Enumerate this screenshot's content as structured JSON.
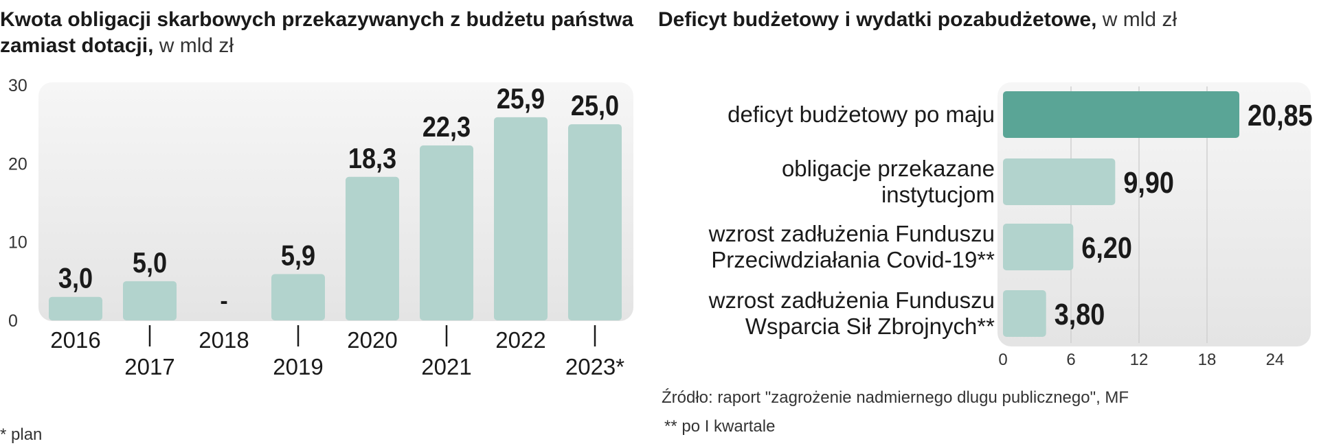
{
  "left_chart": {
    "title_bold": "Kwota obligacji skarbowych przekazywanych z budżetu państwa zamiast dotacji,",
    "title_unit": "w mld zł",
    "footnote": "* plan"
  },
  "right_chart": {
    "title_bold": "Deficyt budżetowy i wydatki pozabudżetowe,",
    "title_unit": "w mld zł",
    "source": "Źródło: raport \"zagrożenie nadmiernego dlugu publicznego\", MF",
    "note": "** po I kwartale"
  },
  "colors": {
    "bar": "#b2d3cd",
    "bar_highlight": "#5aa596",
    "panel": "#ececec"
  },
  "chart_data": [
    {
      "type": "bar",
      "orientation": "vertical",
      "title": "Kwota obligacji skarbowych przekazywanych z budżetu państwa zamiast dotacji, w mld zł",
      "categories": [
        "2016",
        "2017",
        "2018",
        "2019",
        "2020",
        "2021",
        "2022",
        "2023*"
      ],
      "values": [
        3.0,
        5.0,
        null,
        5.9,
        18.3,
        22.3,
        25.9,
        25.0
      ],
      "value_labels": [
        "3,0",
        "5,0",
        "-",
        "5,9",
        "18,3",
        "22,3",
        "25,9",
        "25,0"
      ],
      "yticks": [
        "0",
        "10",
        "20",
        "30"
      ],
      "ylim": [
        0,
        30
      ],
      "grid": false
    },
    {
      "type": "bar",
      "orientation": "horizontal",
      "title": "Deficyt budżetowy i wydatki pozabudżetowe, w mld zł",
      "categories": [
        [
          "deficyt budżetowy po maju"
        ],
        [
          "obligacje przekazane",
          "instytucjom"
        ],
        [
          "wzrost zadłużenia Funduszu",
          "Przeciwdziałania Covid-19**"
        ],
        [
          "wzrost zadłużenia Funduszu",
          "Wsparcia Sił Zbrojnych**"
        ]
      ],
      "values": [
        20.85,
        9.9,
        6.2,
        3.8
      ],
      "value_labels": [
        "20,85",
        "9,90",
        "6,20",
        "3,80"
      ],
      "xticks": [
        "0",
        "6",
        "12",
        "18",
        "24"
      ],
      "xlim": [
        0,
        24
      ],
      "grid": true
    }
  ]
}
